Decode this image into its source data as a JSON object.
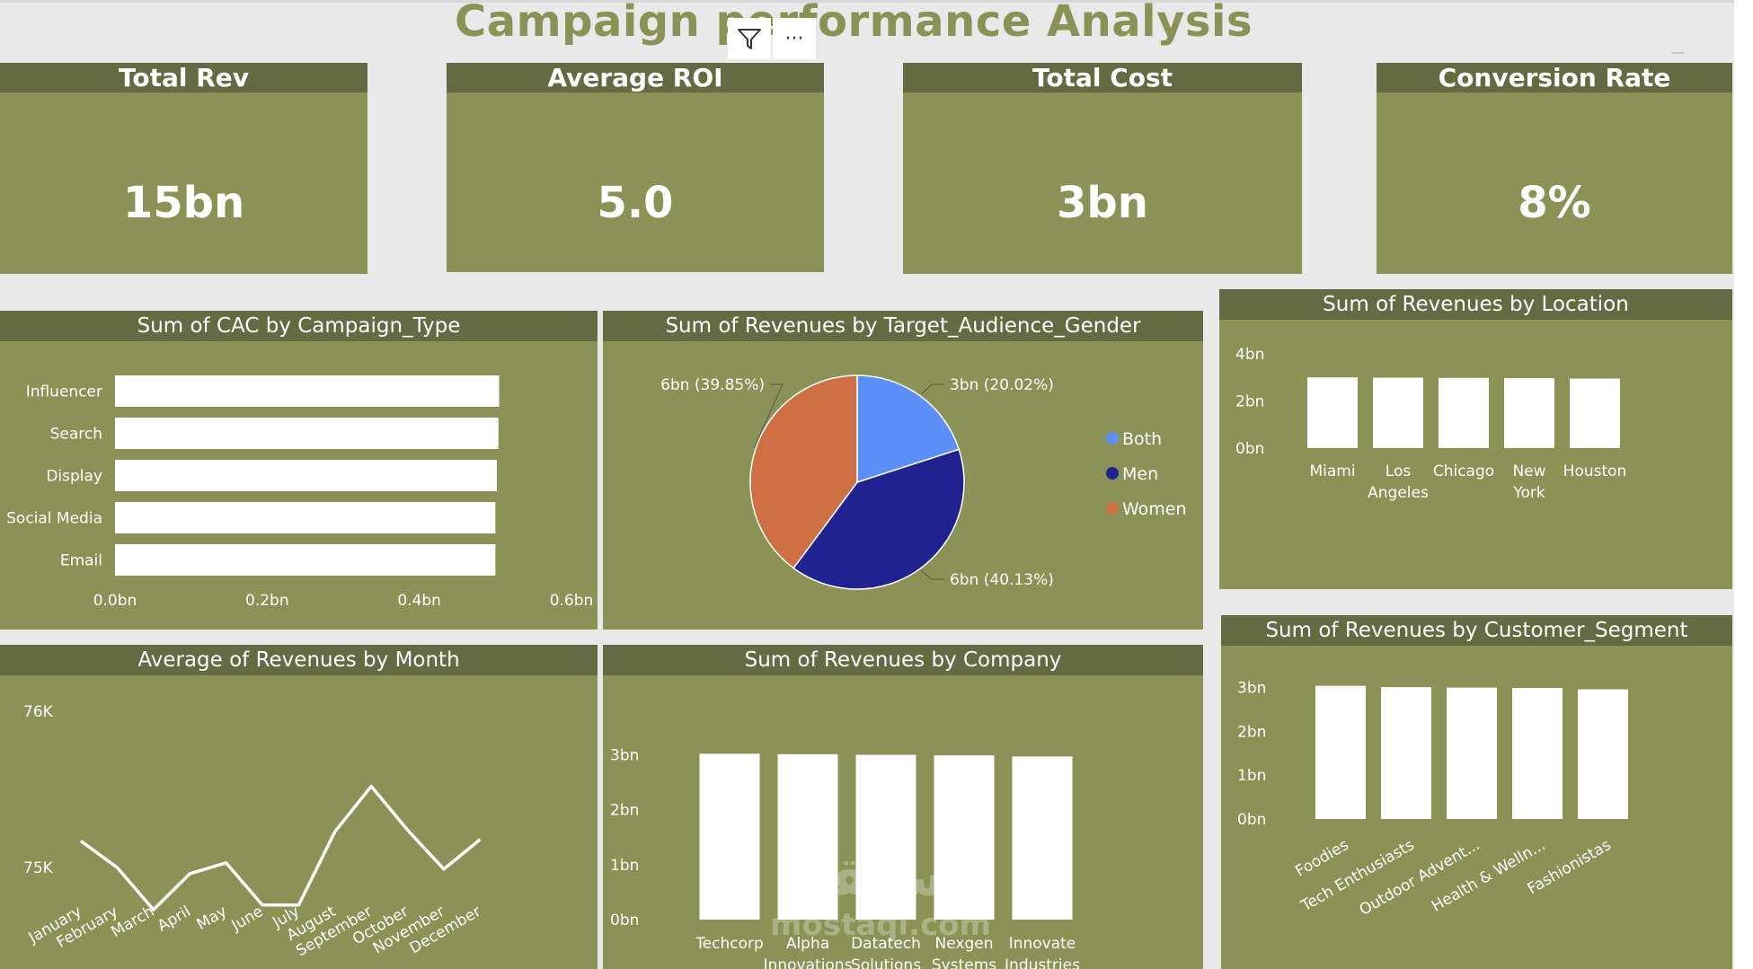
{
  "title": "Campaign performance Analysis",
  "toolbar": {
    "filter_icon": "filter-icon",
    "more_icon": "more-options-icon",
    "more_label": "···"
  },
  "kpis": [
    {
      "label": "Total Rev",
      "value": "15bn"
    },
    {
      "label": "Average ROI",
      "value": "5.0"
    },
    {
      "label": "Total Cost",
      "value": "3bn"
    },
    {
      "label": "Conversion Rate",
      "value": "8%"
    }
  ],
  "colors": {
    "panel": "#8a9355",
    "header": "#646b42",
    "bar": "#ffffff",
    "both": "#5b8ff9",
    "men": "#20228f",
    "women": "#cf7044",
    "background": "#e9e9e9"
  },
  "watermark": {
    "text": "مستقل",
    "subtext": "mostaql.com"
  },
  "chart_data": [
    {
      "id": "cac",
      "type": "bar",
      "orientation": "horizontal",
      "title": "Sum of CAC by Campaign_Type",
      "categories": [
        "Influencer",
        "Search",
        "Display",
        "Social Media",
        "Email"
      ],
      "values": [
        0.505,
        0.504,
        0.502,
        0.5,
        0.5
      ],
      "xticks": [
        "0.0bn",
        "0.2bn",
        "0.4bn",
        "0.6bn"
      ],
      "xlim": [
        0,
        0.6
      ]
    },
    {
      "id": "gender",
      "type": "pie",
      "title": "Sum of Revenues by Target_Audience_Gender",
      "slices": [
        {
          "name": "Both",
          "value": 20.02,
          "label": "3bn (20.02%)",
          "color": "#5b8ff9"
        },
        {
          "name": "Men",
          "value": 40.13,
          "label": "6bn (40.13%)",
          "color": "#20228f"
        },
        {
          "name": "Women",
          "value": 39.85,
          "label": "6bn (39.85%)",
          "color": "#cf7044"
        }
      ],
      "legend": [
        "Both",
        "Men",
        "Women"
      ],
      "legend_position": "right"
    },
    {
      "id": "location",
      "type": "bar",
      "title": "Sum of Revenues by Location",
      "categories": [
        "Miami",
        "Los Angeles",
        "Chicago",
        "New York",
        "Houston"
      ],
      "values": [
        3.0,
        2.99,
        2.98,
        2.97,
        2.95
      ],
      "yticks": [
        "4bn",
        "2bn",
        "0bn"
      ],
      "ylim": [
        0,
        4
      ]
    },
    {
      "id": "month",
      "type": "line",
      "title": "Average of Revenues by Month",
      "categories": [
        "January",
        "February",
        "March",
        "April",
        "May",
        "June",
        "July",
        "August",
        "September",
        "October",
        "November",
        "December"
      ],
      "values": [
        75170,
        75000,
        74730,
        74960,
        75030,
        74760,
        74760,
        75230,
        75520,
        75240,
        74990,
        75180
      ],
      "yticks": [
        "76K",
        "75K"
      ],
      "ylim": [
        74460,
        76000
      ]
    },
    {
      "id": "company",
      "type": "bar",
      "title": "Sum of Revenues by Company",
      "categories": [
        "Techcorp",
        "Alpha Innovations",
        "Datatech Solutions",
        "Nexgen Systems",
        "Innovate Industries"
      ],
      "values": [
        3.02,
        3.01,
        3.0,
        2.99,
        2.97
      ],
      "yticks": [
        "3bn",
        "2bn",
        "1bn",
        "0bn"
      ],
      "ylim": [
        0,
        3.27
      ]
    },
    {
      "id": "segment",
      "type": "bar",
      "title": "Sum of Revenues by Customer_Segment",
      "categories": [
        "Foodies",
        "Tech Enthusiasts",
        "Outdoor Advent...",
        "Health & Welln...",
        "Fashionistas"
      ],
      "values": [
        3.04,
        3.01,
        3.0,
        2.99,
        2.96
      ],
      "yticks": [
        "3bn",
        "2bn",
        "1bn",
        "0bn"
      ],
      "ylim": [
        0,
        3.3
      ]
    }
  ]
}
